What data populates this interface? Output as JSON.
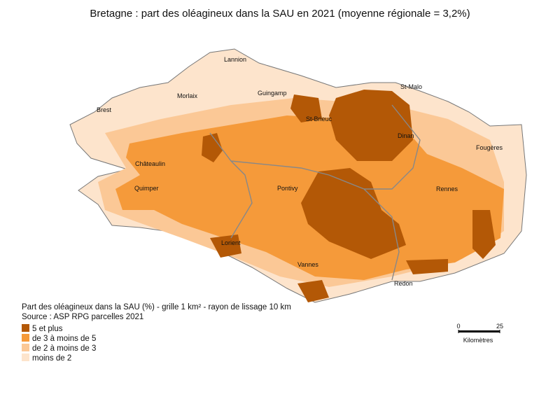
{
  "title": "Bretagne : part des oléagineux dans la SAU en 2021 (moyenne régionale = 3,2%)",
  "cities": [
    "Lannion",
    "Morlaix",
    "Guingamp",
    "St-Malo",
    "Brest",
    "St-Brieuc",
    "Dinan",
    "Fougères",
    "Châteaulin",
    "Quimper",
    "Pontivy",
    "Rennes",
    "Lorient",
    "Vannes",
    "Redon"
  ],
  "legend": {
    "title": "Part des oléagineux dans la SAU (%) - grille 1 km² - rayon de lissage 10 km",
    "source": "Source : ASP RPG parcelles 2021",
    "items": [
      {
        "label": "5 et plus",
        "color": "#b35806"
      },
      {
        "label": "de 3 à moins de 5",
        "color": "#f59a3a"
      },
      {
        "label": "de 2 à moins de 3",
        "color": "#fbc896"
      },
      {
        "label": "moins de 2",
        "color": "#fde4cc"
      }
    ]
  },
  "scale": {
    "ticks": [
      0,
      25
    ],
    "unit": "Kilomètres"
  }
}
